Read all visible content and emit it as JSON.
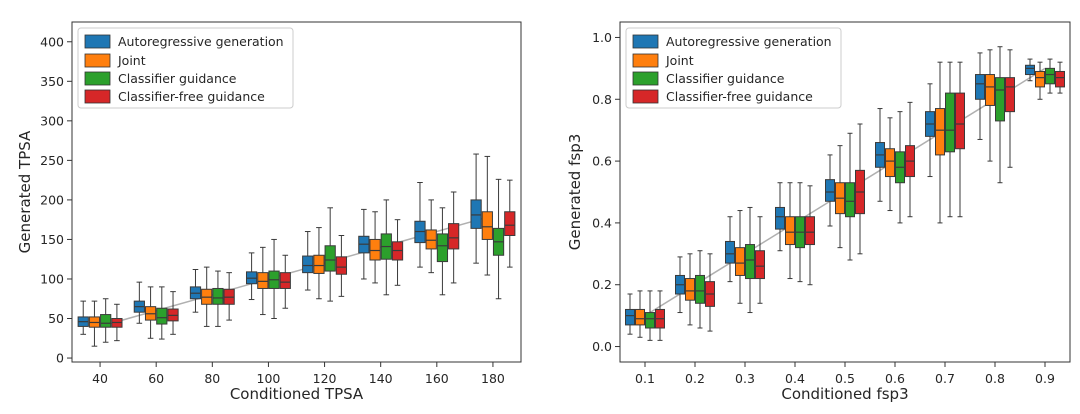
{
  "colors": {
    "series": [
      "#1f77b4",
      "#ff7f0e",
      "#2ca02c",
      "#d62728"
    ],
    "reference_line": "#b0b0b0",
    "frame": "#333333"
  },
  "chart_data": [
    {
      "type": "box",
      "xlabel": "Conditioned TPSA",
      "ylabel": "Generated TPSA",
      "ylim": [
        -5,
        425
      ],
      "yticks": [
        0,
        50,
        100,
        150,
        200,
        250,
        300,
        350,
        400
      ],
      "categories": [
        "40",
        "60",
        "80",
        "100",
        "120",
        "140",
        "160",
        "180"
      ],
      "legend_position": "top-left",
      "reference_line": [
        40,
        60,
        80,
        100,
        120,
        140,
        160,
        180
      ],
      "series": [
        {
          "name": "Autoregressive generation",
          "boxes": [
            {
              "min": 30,
              "q1": 40,
              "median": 46,
              "q3": 52,
              "max": 72
            },
            {
              "min": 44,
              "q1": 58,
              "median": 65,
              "q3": 72,
              "max": 96
            },
            {
              "min": 58,
              "q1": 75,
              "median": 82,
              "q3": 90,
              "max": 112
            },
            {
              "min": 74,
              "q1": 94,
              "median": 101,
              "q3": 109,
              "max": 133
            },
            {
              "min": 86,
              "q1": 108,
              "median": 117,
              "q3": 129,
              "max": 160
            },
            {
              "min": 100,
              "q1": 133,
              "median": 144,
              "q3": 154,
              "max": 188
            },
            {
              "min": 115,
              "q1": 146,
              "median": 160,
              "q3": 173,
              "max": 222
            },
            {
              "min": 120,
              "q1": 164,
              "median": 181,
              "q3": 200,
              "max": 258
            }
          ]
        },
        {
          "name": "Joint",
          "boxes": [
            {
              "min": 15,
              "q1": 39,
              "median": 45,
              "q3": 52,
              "max": 72
            },
            {
              "min": 25,
              "q1": 48,
              "median": 56,
              "q3": 65,
              "max": 90
            },
            {
              "min": 40,
              "q1": 68,
              "median": 77,
              "q3": 87,
              "max": 115
            },
            {
              "min": 55,
              "q1": 88,
              "median": 97,
              "q3": 108,
              "max": 140
            },
            {
              "min": 75,
              "q1": 107,
              "median": 117,
              "q3": 130,
              "max": 165
            },
            {
              "min": 95,
              "q1": 124,
              "median": 136,
              "q3": 150,
              "max": 185
            },
            {
              "min": 108,
              "q1": 138,
              "median": 149,
              "q3": 162,
              "max": 200
            },
            {
              "min": 105,
              "q1": 150,
              "median": 166,
              "q3": 185,
              "max": 255
            }
          ]
        },
        {
          "name": "Classifier guidance",
          "boxes": [
            {
              "min": 20,
              "q1": 39,
              "median": 44,
              "q3": 55,
              "max": 75
            },
            {
              "min": 24,
              "q1": 43,
              "median": 51,
              "q3": 63,
              "max": 90
            },
            {
              "min": 40,
              "q1": 68,
              "median": 76,
              "q3": 88,
              "max": 110
            },
            {
              "min": 50,
              "q1": 88,
              "median": 99,
              "q3": 110,
              "max": 150
            },
            {
              "min": 72,
              "q1": 110,
              "median": 124,
              "q3": 142,
              "max": 190
            },
            {
              "min": 80,
              "q1": 125,
              "median": 141,
              "q3": 157,
              "max": 200
            },
            {
              "min": 80,
              "q1": 122,
              "median": 142,
              "q3": 157,
              "max": 190
            },
            {
              "min": 75,
              "q1": 130,
              "median": 147,
              "q3": 164,
              "max": 226
            }
          ]
        },
        {
          "name": "Classifier-free guidance",
          "boxes": [
            {
              "min": 22,
              "q1": 39,
              "median": 45,
              "q3": 50,
              "max": 68
            },
            {
              "min": 30,
              "q1": 47,
              "median": 54,
              "q3": 62,
              "max": 84
            },
            {
              "min": 48,
              "q1": 68,
              "median": 77,
              "q3": 87,
              "max": 108
            },
            {
              "min": 63,
              "q1": 88,
              "median": 96,
              "q3": 108,
              "max": 130
            },
            {
              "min": 78,
              "q1": 106,
              "median": 115,
              "q3": 128,
              "max": 155
            },
            {
              "min": 92,
              "q1": 124,
              "median": 136,
              "q3": 147,
              "max": 175
            },
            {
              "min": 95,
              "q1": 138,
              "median": 152,
              "q3": 170,
              "max": 210
            },
            {
              "min": 115,
              "q1": 155,
              "median": 168,
              "q3": 185,
              "max": 225
            }
          ]
        }
      ]
    },
    {
      "type": "box",
      "xlabel": "Conditioned fsp3",
      "ylabel": "Generated fsp3",
      "ylim": [
        -0.05,
        1.05
      ],
      "yticks": [
        0.0,
        0.2,
        0.4,
        0.6,
        0.8,
        1.0
      ],
      "categories": [
        "0.1",
        "0.2",
        "0.3",
        "0.4",
        "0.5",
        "0.6",
        "0.7",
        "0.8",
        "0.9"
      ],
      "legend_position": "top-left",
      "reference_line": [
        0.1,
        0.2,
        0.3,
        0.4,
        0.5,
        0.6,
        0.7,
        0.8,
        0.9
      ],
      "series": [
        {
          "name": "Autoregressive generation",
          "boxes": [
            {
              "min": 0.04,
              "q1": 0.07,
              "median": 0.1,
              "q3": 0.12,
              "max": 0.17
            },
            {
              "min": 0.11,
              "q1": 0.17,
              "median": 0.2,
              "q3": 0.23,
              "max": 0.29
            },
            {
              "min": 0.21,
              "q1": 0.27,
              "median": 0.3,
              "q3": 0.34,
              "max": 0.42
            },
            {
              "min": 0.31,
              "q1": 0.38,
              "median": 0.42,
              "q3": 0.45,
              "max": 0.53
            },
            {
              "min": 0.39,
              "q1": 0.47,
              "median": 0.5,
              "q3": 0.54,
              "max": 0.62
            },
            {
              "min": 0.47,
              "q1": 0.58,
              "median": 0.62,
              "q3": 0.66,
              "max": 0.77
            },
            {
              "min": 0.55,
              "q1": 0.68,
              "median": 0.72,
              "q3": 0.76,
              "max": 0.85
            },
            {
              "min": 0.67,
              "q1": 0.8,
              "median": 0.85,
              "q3": 0.88,
              "max": 0.95
            },
            {
              "min": 0.86,
              "q1": 0.88,
              "median": 0.9,
              "q3": 0.91,
              "max": 0.93
            }
          ]
        },
        {
          "name": "Joint",
          "boxes": [
            {
              "min": 0.03,
              "q1": 0.07,
              "median": 0.09,
              "q3": 0.12,
              "max": 0.18
            },
            {
              "min": 0.07,
              "q1": 0.15,
              "median": 0.18,
              "q3": 0.22,
              "max": 0.3
            },
            {
              "min": 0.14,
              "q1": 0.23,
              "median": 0.27,
              "q3": 0.32,
              "max": 0.44
            },
            {
              "min": 0.22,
              "q1": 0.33,
              "median": 0.37,
              "q3": 0.42,
              "max": 0.53
            },
            {
              "min": 0.32,
              "q1": 0.43,
              "median": 0.48,
              "q3": 0.53,
              "max": 0.65
            },
            {
              "min": 0.44,
              "q1": 0.55,
              "median": 0.6,
              "q3": 0.64,
              "max": 0.74
            },
            {
              "min": 0.4,
              "q1": 0.62,
              "median": 0.7,
              "q3": 0.77,
              "max": 0.92
            },
            {
              "min": 0.6,
              "q1": 0.78,
              "median": 0.84,
              "q3": 0.88,
              "max": 0.96
            },
            {
              "min": 0.8,
              "q1": 0.84,
              "median": 0.87,
              "q3": 0.89,
              "max": 0.92
            }
          ]
        },
        {
          "name": "Classifier guidance",
          "boxes": [
            {
              "min": 0.02,
              "q1": 0.06,
              "median": 0.09,
              "q3": 0.11,
              "max": 0.18
            },
            {
              "min": 0.06,
              "q1": 0.14,
              "median": 0.18,
              "q3": 0.23,
              "max": 0.31
            },
            {
              "min": 0.11,
              "q1": 0.22,
              "median": 0.28,
              "q3": 0.33,
              "max": 0.45
            },
            {
              "min": 0.21,
              "q1": 0.32,
              "median": 0.37,
              "q3": 0.42,
              "max": 0.53
            },
            {
              "min": 0.28,
              "q1": 0.42,
              "median": 0.47,
              "q3": 0.53,
              "max": 0.69
            },
            {
              "min": 0.4,
              "q1": 0.53,
              "median": 0.58,
              "q3": 0.63,
              "max": 0.76
            },
            {
              "min": 0.42,
              "q1": 0.63,
              "median": 0.7,
              "q3": 0.82,
              "max": 0.92
            },
            {
              "min": 0.53,
              "q1": 0.73,
              "median": 0.83,
              "q3": 0.87,
              "max": 0.97
            },
            {
              "min": 0.82,
              "q1": 0.85,
              "median": 0.88,
              "q3": 0.9,
              "max": 0.93
            }
          ]
        },
        {
          "name": "Classifier-free guidance",
          "boxes": [
            {
              "min": 0.02,
              "q1": 0.06,
              "median": 0.09,
              "q3": 0.12,
              "max": 0.18
            },
            {
              "min": 0.05,
              "q1": 0.13,
              "median": 0.17,
              "q3": 0.21,
              "max": 0.3
            },
            {
              "min": 0.14,
              "q1": 0.22,
              "median": 0.26,
              "q3": 0.31,
              "max": 0.42
            },
            {
              "min": 0.2,
              "q1": 0.33,
              "median": 0.37,
              "q3": 0.42,
              "max": 0.52
            },
            {
              "min": 0.3,
              "q1": 0.43,
              "median": 0.5,
              "q3": 0.57,
              "max": 0.72
            },
            {
              "min": 0.42,
              "q1": 0.55,
              "median": 0.6,
              "q3": 0.65,
              "max": 0.79
            },
            {
              "min": 0.42,
              "q1": 0.64,
              "median": 0.72,
              "q3": 0.82,
              "max": 0.92
            },
            {
              "min": 0.58,
              "q1": 0.76,
              "median": 0.84,
              "q3": 0.87,
              "max": 0.96
            },
            {
              "min": 0.82,
              "q1": 0.84,
              "median": 0.87,
              "q3": 0.89,
              "max": 0.92
            }
          ]
        }
      ]
    }
  ]
}
